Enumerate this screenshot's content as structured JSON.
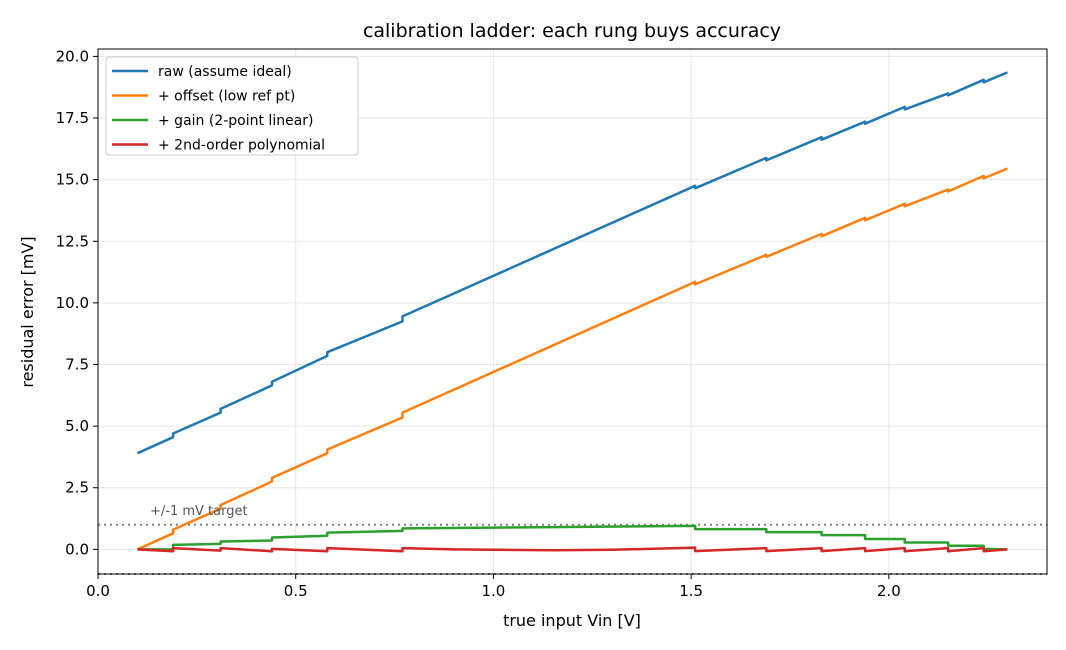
{
  "chart_data": {
    "type": "line",
    "title": "calibration ladder: each rung buys accuracy",
    "xlabel": "true input Vin [V]",
    "ylabel": "residual error [mV]",
    "xlim": [
      0.0,
      2.4
    ],
    "ylim": [
      -1.0,
      20.3
    ],
    "xticks": [
      "0.0",
      "0.5",
      "1.0",
      "1.5",
      "2.0"
    ],
    "yticks": [
      "0.0",
      "2.5",
      "5.0",
      "7.5",
      "10.0",
      "12.5",
      "15.0",
      "17.5",
      "20.0"
    ],
    "grid": true,
    "legend_position": "upper-left",
    "target_lines": [
      1.0,
      -1.0
    ],
    "annotation": "+/-1 mV target",
    "series": [
      {
        "name": "raw (assume ideal)",
        "color": "#1f77b4",
        "points": [
          [
            0.1,
            3.9
          ],
          [
            0.19,
            4.55
          ],
          [
            0.19,
            4.7
          ],
          [
            0.31,
            5.55
          ],
          [
            0.31,
            5.7
          ],
          [
            0.44,
            6.65
          ],
          [
            0.44,
            6.8
          ],
          [
            0.58,
            7.85
          ],
          [
            0.58,
            8.0
          ],
          [
            0.77,
            9.25
          ],
          [
            0.77,
            9.45
          ],
          [
            1.51,
            14.75
          ],
          [
            1.51,
            14.65
          ],
          [
            1.69,
            15.88
          ],
          [
            1.69,
            15.78
          ],
          [
            1.83,
            16.72
          ],
          [
            1.83,
            16.62
          ],
          [
            1.94,
            17.35
          ],
          [
            1.94,
            17.27
          ],
          [
            2.04,
            17.95
          ],
          [
            2.04,
            17.85
          ],
          [
            2.15,
            18.5
          ],
          [
            2.15,
            18.42
          ],
          [
            2.24,
            19.05
          ],
          [
            2.24,
            18.95
          ],
          [
            2.3,
            19.35
          ]
        ]
      },
      {
        "name": "+ offset (low ref pt)",
        "color": "#ff7f0e",
        "points": [
          [
            0.1,
            0.0
          ],
          [
            0.19,
            0.65
          ],
          [
            0.19,
            0.8
          ],
          [
            0.31,
            1.65
          ],
          [
            0.31,
            1.8
          ],
          [
            0.44,
            2.75
          ],
          [
            0.44,
            2.9
          ],
          [
            0.58,
            3.9
          ],
          [
            0.58,
            4.05
          ],
          [
            0.77,
            5.35
          ],
          [
            0.77,
            5.55
          ],
          [
            1.51,
            10.85
          ],
          [
            1.51,
            10.75
          ],
          [
            1.69,
            11.95
          ],
          [
            1.69,
            11.87
          ],
          [
            1.83,
            12.8
          ],
          [
            1.83,
            12.7
          ],
          [
            1.94,
            13.45
          ],
          [
            1.94,
            13.35
          ],
          [
            2.04,
            14.02
          ],
          [
            2.04,
            13.92
          ],
          [
            2.15,
            14.6
          ],
          [
            2.15,
            14.52
          ],
          [
            2.24,
            15.15
          ],
          [
            2.24,
            15.05
          ],
          [
            2.3,
            15.45
          ]
        ]
      },
      {
        "name": "+ gain (2-point linear)",
        "color": "#2ca02c",
        "points": [
          [
            0.1,
            0.0
          ],
          [
            0.19,
            0.0
          ],
          [
            0.19,
            0.18
          ],
          [
            0.31,
            0.22
          ],
          [
            0.31,
            0.32
          ],
          [
            0.44,
            0.36
          ],
          [
            0.44,
            0.48
          ],
          [
            0.58,
            0.55
          ],
          [
            0.58,
            0.68
          ],
          [
            0.77,
            0.75
          ],
          [
            0.77,
            0.85
          ],
          [
            1.51,
            0.95
          ],
          [
            1.51,
            0.82
          ],
          [
            1.69,
            0.82
          ],
          [
            1.69,
            0.7
          ],
          [
            1.83,
            0.7
          ],
          [
            1.83,
            0.58
          ],
          [
            1.94,
            0.58
          ],
          [
            1.94,
            0.42
          ],
          [
            2.04,
            0.42
          ],
          [
            2.04,
            0.28
          ],
          [
            2.15,
            0.28
          ],
          [
            2.15,
            0.15
          ],
          [
            2.24,
            0.15
          ],
          [
            2.24,
            0.02
          ],
          [
            2.3,
            0.0
          ]
        ]
      },
      {
        "name": "+ 2nd-order polynomial",
        "color": "#d62728",
        "points": [
          [
            0.1,
            0.0
          ],
          [
            0.19,
            -0.08
          ],
          [
            0.19,
            0.05
          ],
          [
            0.31,
            -0.05
          ],
          [
            0.31,
            0.05
          ],
          [
            0.44,
            -0.08
          ],
          [
            0.44,
            0.02
          ],
          [
            0.58,
            -0.08
          ],
          [
            0.58,
            0.05
          ],
          [
            0.77,
            -0.08
          ],
          [
            0.77,
            0.05
          ],
          [
            0.9,
            0.0
          ],
          [
            1.0,
            -0.02
          ],
          [
            1.15,
            -0.04
          ],
          [
            1.3,
            -0.02
          ],
          [
            1.51,
            0.07
          ],
          [
            1.51,
            -0.07
          ],
          [
            1.69,
            0.05
          ],
          [
            1.69,
            -0.07
          ],
          [
            1.83,
            0.05
          ],
          [
            1.83,
            -0.07
          ],
          [
            1.94,
            0.05
          ],
          [
            1.94,
            -0.07
          ],
          [
            2.04,
            0.05
          ],
          [
            2.04,
            -0.08
          ],
          [
            2.15,
            0.05
          ],
          [
            2.15,
            -0.08
          ],
          [
            2.24,
            0.05
          ],
          [
            2.24,
            -0.08
          ],
          [
            2.3,
            0.0
          ]
        ]
      }
    ]
  }
}
